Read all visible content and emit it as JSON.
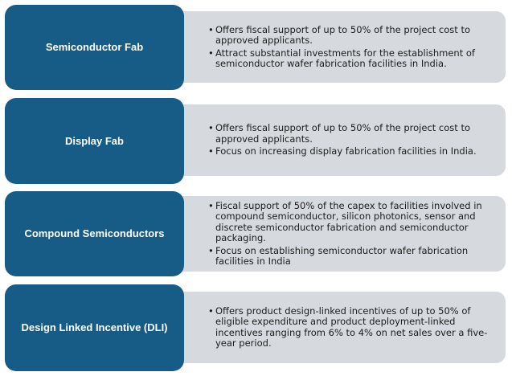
{
  "colors": {
    "label_bg": "#175c86",
    "label_text": "#ffffff",
    "detail_bg": "#d6d9dd",
    "detail_text": "#1c1c1c"
  },
  "rows": [
    {
      "label": "Semiconductor Fab",
      "bullets": [
        "Offers fiscal support of up to 50% of the project cost to approved applicants.",
        "Attract substantial investments for the establishment of semiconductor wafer fabrication facilities in India."
      ]
    },
    {
      "label": "Display Fab",
      "bullets": [
        "Offers fiscal support of up to 50% of the project cost to approved applicants.",
        "Focus on increasing display fabrication facilities in India."
      ]
    },
    {
      "label": "Compound Semiconductors",
      "bullets": [
        "Fiscal support of 50% of the capex to facilities involved in compound semiconductor, silicon photonics, sensor and discrete semiconductor fabrication and semiconductor packaging.",
        "Focus on establishing semiconductor wafer fabrication facilities in India"
      ]
    },
    {
      "label": "Design Linked Incentive (DLI)",
      "bullets": [
        "Offers product design-linked incentives of up to 50% of eligible expenditure and product deployment-linked incentives ranging from 6% to 4% on net sales over a five-year period."
      ]
    }
  ]
}
